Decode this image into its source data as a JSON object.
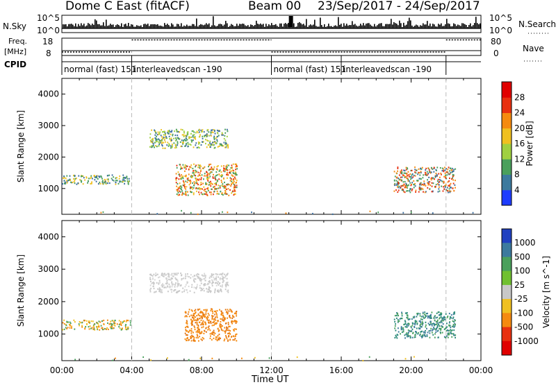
{
  "header": {
    "title": "Dome C East (fitACF)",
    "beam": "Beam 00",
    "date_range": "23/Sep/2017 - 24/Sep/2017"
  },
  "top_panels": {
    "nsky_label": "N.Sky",
    "nsky_ticks": [
      "10^5",
      "10^0"
    ],
    "nsearch_label": "N.Search",
    "nsearch_ticks": [
      "10^5",
      "10^0"
    ],
    "freq_label_1": "Freq.",
    "freq_label_2": "[MHz]",
    "freq_ticks": [
      "18",
      "8"
    ],
    "nave_label": "Nave",
    "nave_ticks": [
      "80",
      "0"
    ],
    "cpid_label": "CPID",
    "cpid_segments": [
      {
        "label": "normal (fast)  151",
        "start": 0,
        "end": 4
      },
      {
        "label": "interleavedscan  -190",
        "start": 4,
        "end": 12
      },
      {
        "label": "normal (fast)  151",
        "start": 12,
        "end": 16
      },
      {
        "label": "interleavedscan  -190",
        "start": 16,
        "end": 22
      },
      {
        "label": "",
        "start": 22,
        "end": 24
      }
    ],
    "freq_series": [
      {
        "start": 0,
        "end": 4,
        "level": 0.2
      },
      {
        "start": 4,
        "end": 12,
        "level": 0.9
      },
      {
        "start": 12,
        "end": 22,
        "level": 0.2
      },
      {
        "start": 22,
        "end": 24,
        "level": 0.9
      }
    ]
  },
  "chart_data": [
    {
      "type": "heatmap",
      "name": "power",
      "ylabel": "Slant Range [km]",
      "ylim": [
        180,
        4500
      ],
      "yticks": [
        1000,
        2000,
        3000,
        4000
      ],
      "xlim": [
        0,
        24
      ],
      "colorbar_label": "Power [dB]",
      "colorbar_ticks": [
        "4",
        "8",
        "12",
        "16",
        "20",
        "24",
        "28"
      ],
      "colorbar_colors": [
        "#1e3cff",
        "#3c7a9e",
        "#4aa05c",
        "#a0d040",
        "#f0c020",
        "#f58a10",
        "#e83010",
        "#e00000"
      ],
      "regions": [
        {
          "t0": 0.0,
          "t1": 3.9,
          "r0": 1150,
          "r1": 1450,
          "palette": [
            "#3c6ea0",
            "#4aa05c",
            "#f0c020"
          ]
        },
        {
          "t0": 5.0,
          "t1": 9.5,
          "r0": 2300,
          "r1": 2900,
          "palette": [
            "#4aa05c",
            "#a0d040",
            "#f0c020",
            "#3c6ea0"
          ]
        },
        {
          "t0": 6.5,
          "t1": 10.0,
          "r0": 800,
          "r1": 1800,
          "palette": [
            "#f58a10",
            "#e83010",
            "#f0c020",
            "#4aa05c"
          ]
        },
        {
          "t0": 19.0,
          "t1": 22.5,
          "r0": 900,
          "r1": 1700,
          "palette": [
            "#4aa05c",
            "#f58a10",
            "#e83010",
            "#3c6ea0"
          ]
        },
        {
          "t0": 0.0,
          "t1": 24.0,
          "r0": 200,
          "r1": 320,
          "palette": [
            "#3c6ea0",
            "#f58a10",
            "#4aa05c"
          ]
        }
      ]
    },
    {
      "type": "heatmap",
      "name": "velocity",
      "ylabel": "Slant Range [km]",
      "xlabel": "Time UT",
      "ylim": [
        180,
        4500
      ],
      "yticks": [
        1000,
        2000,
        3000,
        4000
      ],
      "xlim": [
        0,
        24
      ],
      "xtick_labels": [
        "00:00",
        "04:00",
        "08:00",
        "12:00",
        "16:00",
        "20:00",
        "00:00"
      ],
      "colorbar_label": "Velocity [m s^-1]",
      "colorbar_ticks": [
        "1000",
        "500",
        "100",
        "25",
        "-25",
        "-100",
        "-500",
        "-1000"
      ],
      "colorbar_colors": [
        "#2040c0",
        "#3c7a9e",
        "#4aa05c",
        "#70c030",
        "#c8c8c8",
        "#f0c020",
        "#f58a10",
        "#e83010",
        "#e00000"
      ],
      "regions": [
        {
          "t0": 0.0,
          "t1": 3.9,
          "r0": 1150,
          "r1": 1450,
          "palette": [
            "#f58a10",
            "#4aa05c",
            "#f0c020"
          ]
        },
        {
          "t0": 5.0,
          "t1": 9.5,
          "r0": 2300,
          "r1": 2900,
          "palette": [
            "#c8c8c8",
            "#c8c8c8",
            "#d8d8d8"
          ]
        },
        {
          "t0": 7.0,
          "t1": 10.0,
          "r0": 800,
          "r1": 1800,
          "palette": [
            "#f58a10",
            "#f58a10",
            "#e07010"
          ]
        },
        {
          "t0": 19.0,
          "t1": 22.5,
          "r0": 900,
          "r1": 1700,
          "palette": [
            "#3c7a9e",
            "#4aa05c",
            "#2a8a7a"
          ]
        },
        {
          "t0": 0.0,
          "t1": 24.0,
          "r0": 200,
          "r1": 320,
          "palette": [
            "#f0c020",
            "#f58a10",
            "#4aa05c"
          ]
        }
      ]
    }
  ]
}
